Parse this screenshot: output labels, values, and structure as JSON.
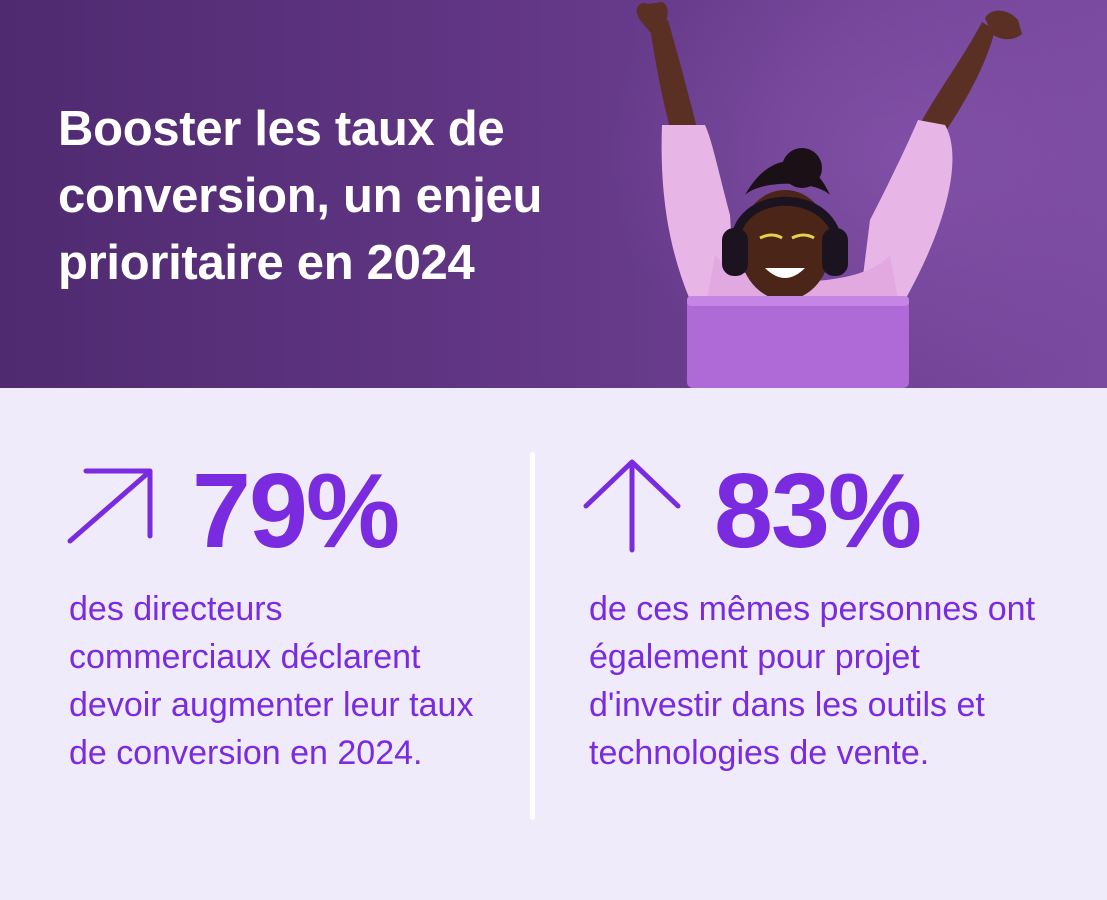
{
  "banner": {
    "headline": "Booster les taux de conversion, un enjeu prioritaire en 2024"
  },
  "colors": {
    "banner_dark": "#4f2a70",
    "banner_light": "#7a4aa0",
    "accent": "#7a2be0",
    "background": "#efebfa"
  },
  "stats": [
    {
      "icon": "arrow-up-right-icon",
      "value": "79%",
      "description": "des directeurs commerciaux déclarent devoir augmenter leur taux de conversion en 2024."
    },
    {
      "icon": "arrow-up-icon",
      "value": "83%",
      "description": "de ces mêmes personnes ont également pour projet d'investir dans les outils et technologies de vente."
    }
  ]
}
